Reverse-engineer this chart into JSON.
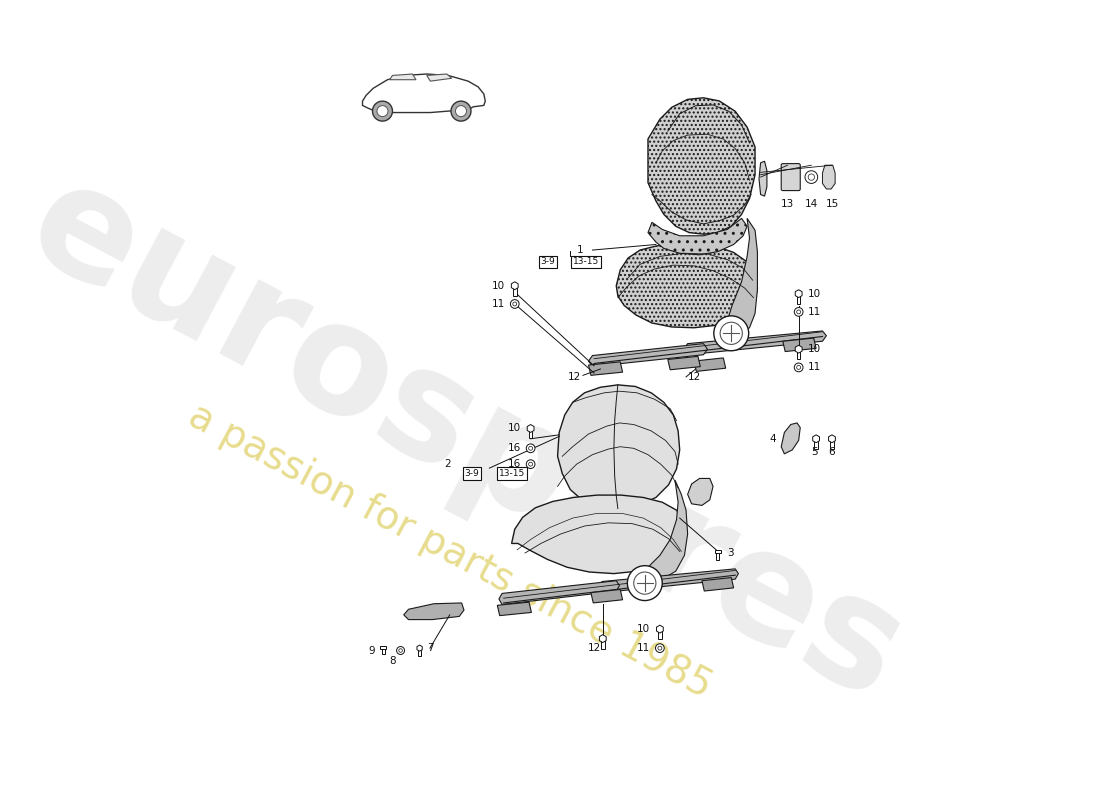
{
  "bg_color": "#ffffff",
  "watermark_text1": "eurospares",
  "watermark_text2": "a passion for parts since 1985",
  "fig_w": 11.0,
  "fig_h": 8.0,
  "dpi": 100
}
